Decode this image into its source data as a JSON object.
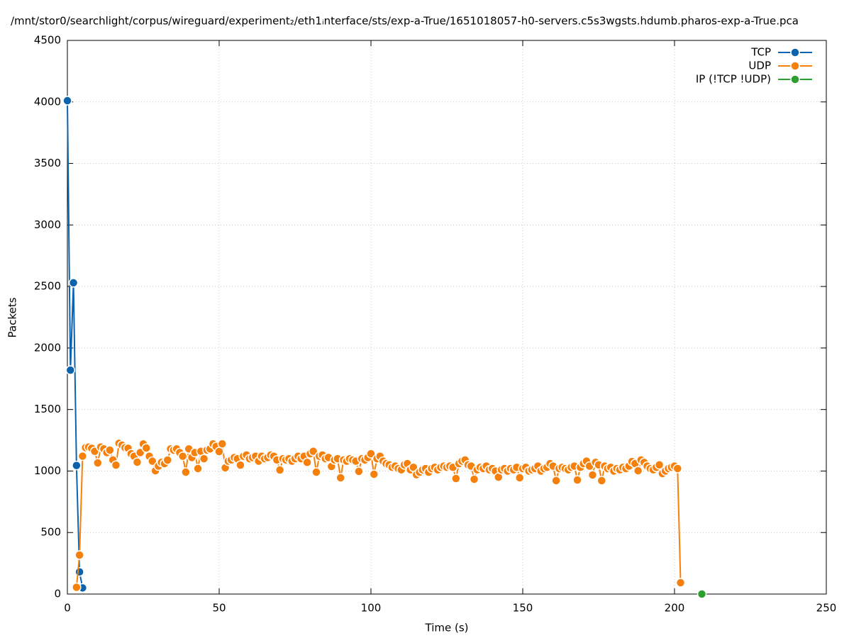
{
  "chart_data": {
    "type": "line",
    "title": "/mnt/stor0/searchlight/corpus/wireguard/experiment₂/eth1ᵢnterface/sts/exp-a-True/1651018057-h0-servers.c5s3wgsts.hdumb.pharos-exp-a-True.pca",
    "x_label": "Time (s)",
    "y_label": "Packets",
    "xlim": [
      0,
      250
    ],
    "xticks": [
      0,
      50,
      100,
      150,
      200,
      250
    ],
    "ylim": [
      0,
      4500
    ],
    "yticks": [
      0,
      500,
      1000,
      1500,
      2000,
      2500,
      3000,
      3500,
      4000,
      4500
    ],
    "grid": true,
    "legend": "top-right",
    "series": [
      {
        "name": "TCP",
        "color": "#0b62ad",
        "x": [
          0,
          1,
          2,
          3,
          4,
          5
        ],
        "values": [
          4010,
          1820,
          2530,
          1045,
          180,
          50
        ]
      },
      {
        "name": "UDP",
        "color": "#f5800c",
        "x": [
          3,
          4,
          5,
          6,
          7,
          8,
          9,
          10,
          11,
          12,
          13,
          14,
          15,
          16,
          17,
          18,
          19,
          20,
          21,
          22,
          23,
          24,
          25,
          26,
          27,
          28,
          29,
          30,
          31,
          32,
          33,
          34,
          35,
          36,
          37,
          38,
          39,
          40,
          41,
          42,
          43,
          44,
          45,
          46,
          47,
          48,
          49,
          50,
          51,
          52,
          53,
          54,
          55,
          56,
          57,
          58,
          59,
          60,
          61,
          62,
          63,
          64,
          65,
          66,
          67,
          68,
          69,
          70,
          71,
          72,
          73,
          74,
          75,
          76,
          77,
          78,
          79,
          80,
          81,
          82,
          83,
          84,
          85,
          86,
          87,
          88,
          89,
          90,
          91,
          92,
          93,
          94,
          95,
          96,
          97,
          98,
          99,
          100,
          101,
          102,
          103,
          104,
          105,
          106,
          107,
          108,
          109,
          110,
          111,
          112,
          113,
          114,
          115,
          116,
          117,
          118,
          119,
          120,
          121,
          122,
          123,
          124,
          125,
          126,
          127,
          128,
          129,
          130,
          131,
          132,
          133,
          134,
          135,
          136,
          137,
          138,
          139,
          140,
          141,
          142,
          143,
          144,
          145,
          146,
          147,
          148,
          149,
          150,
          151,
          152,
          153,
          154,
          155,
          156,
          157,
          158,
          159,
          160,
          161,
          162,
          163,
          164,
          165,
          166,
          167,
          168,
          169,
          170,
          171,
          172,
          173,
          174,
          175,
          176,
          177,
          178,
          179,
          180,
          181,
          182,
          183,
          184,
          185,
          186,
          187,
          188,
          189,
          190,
          191,
          192,
          193,
          194,
          195,
          196,
          197,
          198,
          199,
          200,
          201,
          202
        ],
        "values": [
          55,
          317,
          1121,
          1190,
          1195,
          1185,
          1160,
          1066,
          1195,
          1180,
          1150,
          1170,
          1090,
          1048,
          1225,
          1210,
          1190,
          1185,
          1140,
          1120,
          1072,
          1150,
          1220,
          1187,
          1120,
          1080,
          1002,
          1040,
          1070,
          1060,
          1089,
          1180,
          1170,
          1180,
          1150,
          1120,
          991,
          1180,
          1110,
          1150,
          1020,
          1160,
          1100,
          1170,
          1180,
          1220,
          1200,
          1158,
          1221,
          1026,
          1080,
          1090,
          1110,
          1100,
          1048,
          1120,
          1130,
          1100,
          1110,
          1120,
          1080,
          1120,
          1100,
          1110,
          1130,
          1120,
          1090,
          1008,
          1100,
          1090,
          1100,
          1080,
          1100,
          1120,
          1100,
          1120,
          1070,
          1140,
          1160,
          991,
          1120,
          1130,
          1100,
          1110,
          1037,
          1090,
          1100,
          945,
          1090,
          1080,
          1100,
          1090,
          1080,
          997,
          1100,
          1090,
          1110,
          1140,
          974,
          1100,
          1120,
          1080,
          1060,
          1050,
          1030,
          1040,
          1020,
          1010,
          1050,
          1060,
          1010,
          1030,
          970,
          990,
          1010,
          1020,
          990,
          1020,
          1030,
          1010,
          1030,
          1040,
          1030,
          1040,
          1030,
          939,
          1060,
          1080,
          1090,
          1050,
          1040,
          933,
          1010,
          1030,
          1020,
          1040,
          1010,
          1020,
          1000,
          950,
          1010,
          1020,
          1000,
          1020,
          1010,
          1030,
          945,
          1020,
          1030,
          1000,
          1010,
          1020,
          1040,
          1000,
          1020,
          1030,
          1060,
          1040,
          922,
          1020,
          1030,
          1020,
          1010,
          1030,
          1040,
          927,
          1030,
          1060,
          1080,
          1040,
          968,
          1070,
          1050,
          922,
          1040,
          1020,
          1030,
          1000,
          1020,
          1010,
          1030,
          1020,
          1040,
          1077,
          1060,
          1002,
          1090,
          1070,
          1040,
          1020,
          1010,
          1030,
          1050,
          980,
          1000,
          1020,
          1030,
          1040,
          1020,
          92
        ]
      },
      {
        "name": "IP (!TCP  !UDP)",
        "color": "#2ca02c",
        "x": [
          209
        ],
        "values": [
          0
        ]
      }
    ]
  }
}
